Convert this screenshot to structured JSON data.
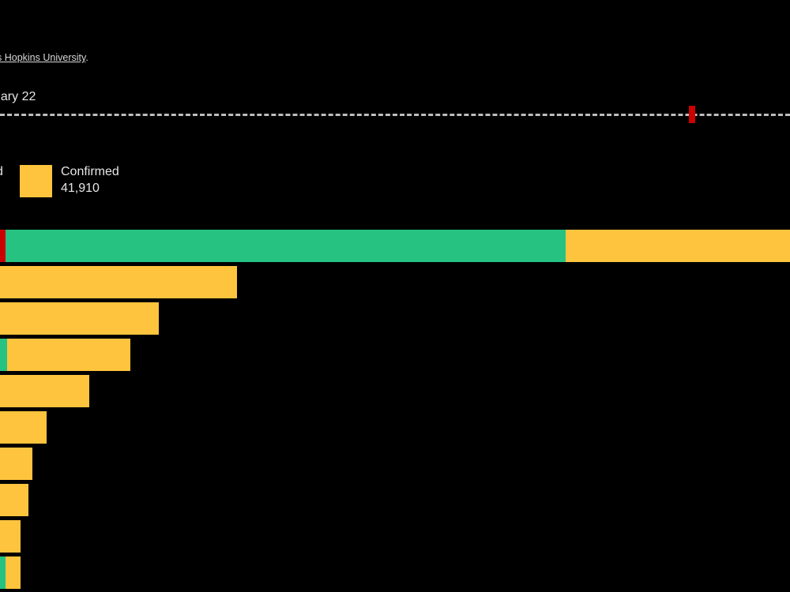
{
  "source": {
    "prefix": "",
    "link_text": "s Hopkins University",
    "suffix": "."
  },
  "date_label": "uary 22",
  "timeline": {
    "marker_color": "#cc0000",
    "line_color": "#bdbdbd"
  },
  "legend": {
    "prev_label_fragment": "d",
    "confirmed": {
      "label": "Confirmed",
      "value": "41,910",
      "color": "#ffc43d"
    }
  },
  "colors": {
    "deaths": "#cc0000",
    "recovered": "#26c281",
    "confirmed": "#ffc43d",
    "background": "#000000"
  },
  "chart_data": {
    "type": "bar",
    "orientation": "horizontal",
    "stacked": true,
    "series": [
      {
        "key": "deaths",
        "values": [
          0.7,
          0,
          0,
          0,
          0,
          0,
          0,
          0,
          0,
          0
        ]
      },
      {
        "key": "recovered",
        "values": [
          70.9,
          0,
          0,
          0.9,
          0,
          0,
          0,
          0,
          0,
          0.7
        ]
      },
      {
        "key": "confirmed",
        "values": [
          28.4,
          30.0,
          20.1,
          15.6,
          11.3,
          5.9,
          4.1,
          3.6,
          2.6,
          1.9
        ]
      }
    ],
    "xlim": [
      0,
      100
    ],
    "grid": false
  }
}
